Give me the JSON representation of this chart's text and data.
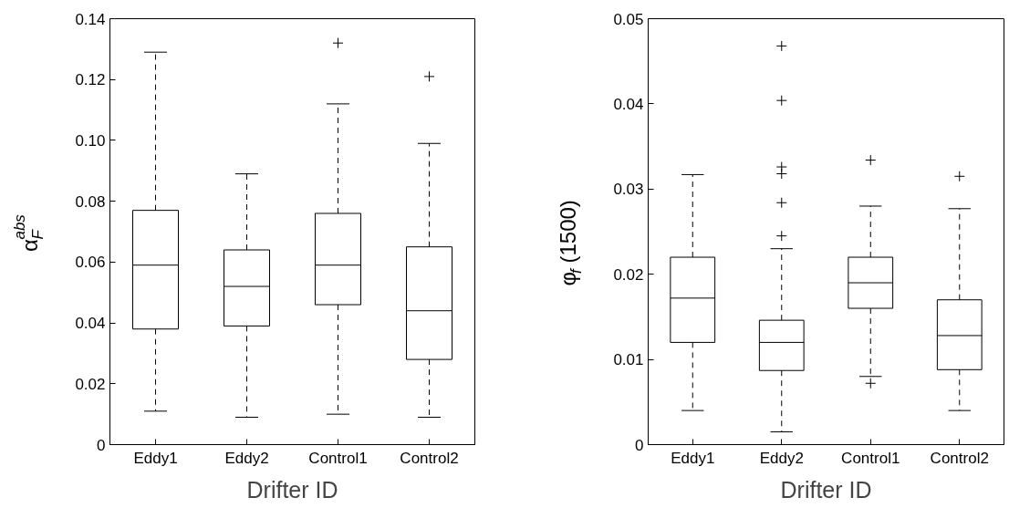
{
  "chart_data": [
    {
      "type": "box",
      "xlabel": "Drifter ID",
      "ylabel": "α$_{F}$$^{abs}$",
      "categories": [
        "Eddy1",
        "Eddy2",
        "Control1",
        "Control2"
      ],
      "marker": "cross",
      "boxes": [
        {
          "low": 0.011,
          "q1": 0.038,
          "median": 0.059,
          "q3": 0.077,
          "high": 0.129
        },
        {
          "low": 0.009,
          "q1": 0.039,
          "median": 0.052,
          "q3": 0.064,
          "high": 0.089
        },
        {
          "low": 0.01,
          "q1": 0.046,
          "median": 0.059,
          "q3": 0.076,
          "high": 0.112,
          "outliers": [
            0.132
          ]
        },
        {
          "low": 0.009,
          "q1": 0.028,
          "median": 0.044,
          "q3": 0.065,
          "high": 0.099,
          "outliers": [
            0.121
          ]
        }
      ],
      "ylim": [
        0,
        0.14
      ],
      "yticks": [
        0,
        0.02,
        0.04,
        0.06,
        0.08,
        {
          "value": 0.1,
          "label": "0.10"
        },
        0.12,
        0.14
      ]
    },
    {
      "type": "box",
      "xlabel": "Drifter ID",
      "ylabel": "φ$_{f}$ (1500)",
      "categories": [
        "Eddy1",
        "Eddy2",
        "Control1",
        "Control2"
      ],
      "marker": "cross",
      "boxes": [
        {
          "low": 0.004,
          "q1": 0.012,
          "median": 0.0172,
          "q3": 0.022,
          "high": 0.0317
        },
        {
          "low": 0.0015,
          "q1": 0.0087,
          "median": 0.012,
          "q3": 0.0146,
          "high": 0.023,
          "outliers": [
            0.0245,
            0.0284,
            0.0318,
            0.0326,
            0.0404,
            0.0468
          ]
        },
        {
          "low": 0.008,
          "q1": 0.016,
          "median": 0.019,
          "q3": 0.022,
          "high": 0.028,
          "outliers": [
            0.0334,
            0.0072
          ]
        },
        {
          "low": 0.004,
          "q1": 0.0088,
          "median": 0.0128,
          "q3": 0.017,
          "high": 0.0277,
          "outliers": [
            0.0315
          ]
        }
      ],
      "ylim": [
        0,
        0.05
      ],
      "yticks": [
        0,
        0.01,
        0.02,
        0.03,
        0.04,
        0.05
      ]
    }
  ]
}
